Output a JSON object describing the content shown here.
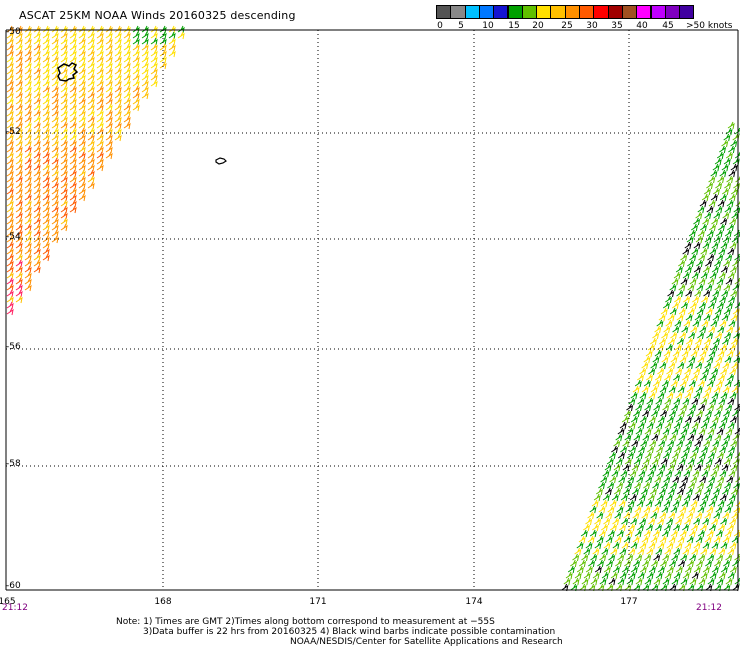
{
  "title": "ASCAT 25KM NOAA Winds 20160325 descending",
  "scale": {
    "colors": [
      "#545454",
      "#888888",
      "#00c0ff",
      "#0078ff",
      "#1414d2",
      "#00a000",
      "#60c000",
      "#ffe000",
      "#ffc000",
      "#ff9000",
      "#ff5a00",
      "#ff0000",
      "#a00000",
      "#a05020",
      "#ff00ff",
      "#c000ff",
      "#8000c0",
      "#4000a0"
    ],
    "labels": [
      "0",
      "5",
      "10",
      "15",
      "20",
      "25",
      "30",
      "35",
      "40",
      "45",
      ">50 knots"
    ]
  },
  "axes": {
    "lat_labels": [
      "-50",
      "-52",
      "-54",
      "-56",
      "-58",
      "-60"
    ],
    "lon_labels": [
      "165",
      "168",
      "171",
      "174",
      "177"
    ]
  },
  "times": {
    "left": "21:12",
    "right": "21:12"
  },
  "notes": {
    "line1": "Note: 1) Times are GMT 2)Times along bottom correspond to measurement at −55S",
    "line2": "3)Data buffer is 22 hrs from 20160325 4) Black wind barbs indicate possible contamination",
    "line3": "NOAA/NESDIS/Center for Satellite Applications and Research"
  }
}
